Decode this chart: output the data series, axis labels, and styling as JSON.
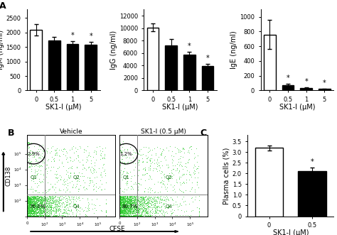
{
  "IgM": {
    "categories": [
      "0",
      "0.5",
      "1",
      "5"
    ],
    "values": [
      2100,
      1720,
      1600,
      1590
    ],
    "errors": [
      200,
      120,
      100,
      100
    ],
    "colors": [
      "white",
      "black",
      "black",
      "black"
    ],
    "ylabel": "IgM (ng/ml)",
    "xlabel": "SK1-I (μM)",
    "ylim": [
      0,
      2800
    ],
    "yticks": [
      0,
      500,
      1000,
      1500,
      2000,
      2500
    ],
    "sig": [
      false,
      false,
      true,
      true
    ]
  },
  "IgG": {
    "categories": [
      "0",
      "0.5",
      "1",
      "5"
    ],
    "values": [
      10100,
      7200,
      5700,
      3900
    ],
    "errors": [
      600,
      1100,
      500,
      400
    ],
    "colors": [
      "white",
      "black",
      "black",
      "black"
    ],
    "ylabel": "IgG (ng/ml)",
    "xlabel": "SK1-I (μM)",
    "ylim": [
      0,
      13000
    ],
    "yticks": [
      0,
      2000,
      4000,
      6000,
      8000,
      10000,
      12000
    ],
    "sig": [
      false,
      false,
      true,
      true
    ]
  },
  "IgE": {
    "categories": [
      "0",
      "0.5",
      "1",
      "5"
    ],
    "values": [
      760,
      70,
      30,
      20
    ],
    "errors": [
      200,
      20,
      10,
      5
    ],
    "colors": [
      "white",
      "black",
      "black",
      "black"
    ],
    "ylabel": "IgE (ng/ml)",
    "xlabel": "SK1-I (μM)",
    "ylim": [
      0,
      1100
    ],
    "yticks": [
      0,
      200,
      400,
      600,
      800,
      1000
    ],
    "sig": [
      false,
      true,
      true,
      true
    ]
  },
  "C": {
    "categories": [
      "0",
      "0.5"
    ],
    "values": [
      3.2,
      2.1
    ],
    "errors": [
      0.12,
      0.18
    ],
    "colors": [
      "white",
      "black"
    ],
    "ylabel": "Plasma cells (%)",
    "xlabel": "SK1-I (μM)",
    "ylim": [
      0,
      3.8
    ],
    "yticks": [
      0,
      0.5,
      1.0,
      1.5,
      2.0,
      2.5,
      3.0,
      3.5
    ],
    "sig": [
      false,
      true
    ]
  },
  "flow_vehicle": {
    "title": "Vehicle",
    "circle_pct": "2.9%",
    "q3_pct": "76.0%",
    "seed": 42
  },
  "flow_sk1": {
    "title": "SK1-I (0.5 μM)",
    "circle_pct": "1.2%",
    "q3_pct": "80.7%",
    "seed": 99
  },
  "flow_xlabel": "CFSE",
  "flow_ylabel": "CD138",
  "bar_edgecolor": "black",
  "bar_linewidth": 1.0,
  "panel_label_fontsize": 9,
  "axis_fontsize": 7,
  "tick_fontsize": 6,
  "star_fontsize": 7,
  "background_color": "white"
}
